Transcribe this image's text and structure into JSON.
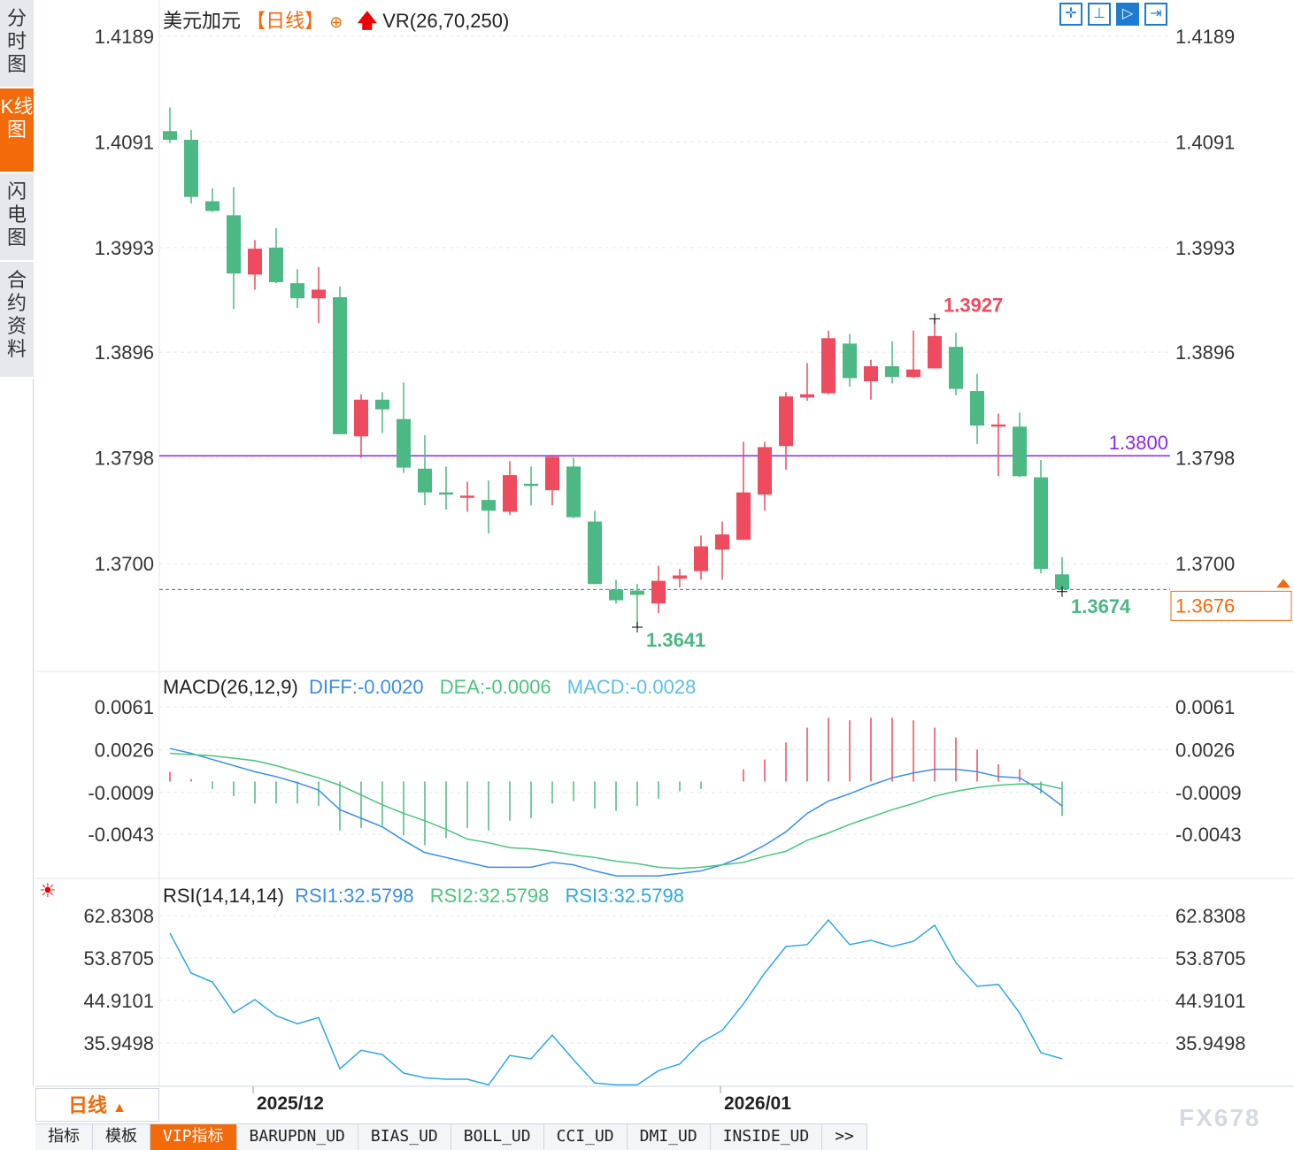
{
  "sidebar": {
    "tabs": [
      {
        "label": "分时图",
        "active": false
      },
      {
        "label": "K线图",
        "active": true
      },
      {
        "label": "闪电图",
        "active": false
      },
      {
        "label": "合约资料",
        "active": false
      }
    ]
  },
  "header": {
    "symbol": "美元加元",
    "period": "【日线】",
    "indicator": "VR(26,70,250)"
  },
  "toolbar": {
    "icons": [
      "crosshair-icon",
      "zoom-range-icon",
      "play-range-icon",
      "move-right-icon"
    ]
  },
  "colors": {
    "up": "#ee4b5e",
    "down": "#4cb884",
    "diff": "#3a8ee6",
    "dea": "#4cc47e",
    "rsi": "#2fa8e0",
    "accent": "#f26a0a",
    "ref_line": "#8b2be2",
    "last_line": "#1f7bd0"
  },
  "chart_data": [
    {
      "type": "candlestick",
      "title": "美元加元",
      "yticks": [
        "1.4189",
        "1.4091",
        "1.3993",
        "1.3896",
        "1.3798",
        "1.3700"
      ],
      "ylim": [
        1.362,
        1.4189
      ],
      "date_ticks": [
        {
          "label": "2025/12",
          "index": 4
        },
        {
          "label": "2026/01",
          "index": 26
        }
      ],
      "ohlc": [
        [
          1.4101,
          1.4123,
          1.409,
          1.4093
        ],
        [
          1.4093,
          1.4102,
          1.4034,
          1.404
        ],
        [
          1.4036,
          1.4048,
          1.4026,
          1.4027
        ],
        [
          1.4023,
          1.4049,
          1.3936,
          1.3969
        ],
        [
          1.3968,
          1.4,
          1.3954,
          1.3992
        ],
        [
          1.3993,
          1.4011,
          1.396,
          1.3961
        ],
        [
          1.396,
          1.3973,
          1.3937,
          1.3946
        ],
        [
          1.3946,
          1.3975,
          1.3923,
          1.3954
        ],
        [
          1.3947,
          1.3957,
          1.382,
          1.382
        ],
        [
          1.3818,
          1.3857,
          1.3798,
          1.3852
        ],
        [
          1.3852,
          1.3859,
          1.3821,
          1.3843
        ],
        [
          1.3834,
          1.3868,
          1.3784,
          1.3789
        ],
        [
          1.3788,
          1.3819,
          1.3754,
          1.3766
        ],
        [
          1.3766,
          1.379,
          1.375,
          1.3764
        ],
        [
          1.3761,
          1.3776,
          1.3748,
          1.3763
        ],
        [
          1.3759,
          1.3777,
          1.3728,
          1.3749
        ],
        [
          1.3748,
          1.3795,
          1.3745,
          1.3782
        ],
        [
          1.3774,
          1.379,
          1.3754,
          1.3772
        ],
        [
          1.3768,
          1.3801,
          1.3754,
          1.3799
        ],
        [
          1.379,
          1.3798,
          1.3742,
          1.3743
        ],
        [
          1.3739,
          1.3749,
          1.3681,
          1.3681
        ],
        [
          1.3676,
          1.3685,
          1.3663,
          1.3666
        ],
        [
          1.3675,
          1.3681,
          1.3641,
          1.3671
        ],
        [
          1.3663,
          1.3698,
          1.3654,
          1.3684
        ],
        [
          1.3686,
          1.3695,
          1.3678,
          1.3689
        ],
        [
          1.3693,
          1.3726,
          1.3685,
          1.3716
        ],
        [
          1.3713,
          1.3739,
          1.3685,
          1.3727
        ],
        [
          1.3722,
          1.3813,
          1.3722,
          1.3766
        ],
        [
          1.3764,
          1.3813,
          1.3749,
          1.3808
        ],
        [
          1.3809,
          1.3859,
          1.3787,
          1.3855
        ],
        [
          1.3854,
          1.3886,
          1.3851,
          1.3857
        ],
        [
          1.3858,
          1.3916,
          1.3857,
          1.3909
        ],
        [
          1.3904,
          1.3913,
          1.3864,
          1.3872
        ],
        [
          1.3869,
          1.3889,
          1.3852,
          1.3883
        ],
        [
          1.3883,
          1.3906,
          1.3867,
          1.3873
        ],
        [
          1.3873,
          1.3916,
          1.3872,
          1.388
        ],
        [
          1.3881,
          1.3927,
          1.3881,
          1.3911
        ],
        [
          1.3901,
          1.3914,
          1.3856,
          1.3862
        ],
        [
          1.386,
          1.3876,
          1.3811,
          1.3828
        ],
        [
          1.3827,
          1.3839,
          1.3781,
          1.3829
        ],
        [
          1.3827,
          1.384,
          1.378,
          1.3781
        ],
        [
          1.378,
          1.3796,
          1.3691,
          1.3695
        ],
        [
          1.369,
          1.3706,
          1.3674,
          1.3676
        ]
      ],
      "annotations": {
        "high": "1.3927",
        "high_index": 36,
        "low": "1.3641",
        "low_index": 22,
        "last_low": "1.3674",
        "last_low_index": 42
      },
      "ref_line": {
        "value": 1.38,
        "label": "1.3800"
      },
      "last_price": {
        "value": 1.3676,
        "label": "1.3676"
      }
    },
    {
      "type": "line",
      "title": "MACD(26,12,9)",
      "legend": [
        {
          "label": "DIFF:-0.0020",
          "color": "#3a8ee6"
        },
        {
          "label": "DEA:-0.0006",
          "color": "#4cc47e"
        },
        {
          "label": "MACD:-0.0028",
          "color": "#4cc47e"
        }
      ],
      "yticks": [
        "0.0061",
        "0.0026",
        "-0.0009",
        "-0.0043"
      ],
      "ylim": [
        -0.0078,
        0.0064
      ],
      "series": [
        {
          "name": "DIFF",
          "values": [
            0.0027,
            0.0023,
            0.0018,
            0.0013,
            0.0008,
            0.0004,
            -0.0001,
            -0.0007,
            -0.0023,
            -0.003,
            -0.0037,
            -0.0048,
            -0.0058,
            -0.0062,
            -0.0066,
            -0.007,
            -0.007,
            -0.007,
            -0.0066,
            -0.0068,
            -0.0073,
            -0.0077,
            -0.0077,
            -0.0077,
            -0.0075,
            -0.0073,
            -0.0068,
            -0.0061,
            -0.0052,
            -0.0041,
            -0.0026,
            -0.0016,
            -0.001,
            -0.0003,
            0.0003,
            0.0007,
            0.001,
            0.001,
            0.0008,
            0.0004,
            0.0003,
            -0.0007,
            -0.002
          ]
        },
        {
          "name": "DEA",
          "values": [
            0.0023,
            0.0022,
            0.0021,
            0.0019,
            0.0017,
            0.0013,
            0.0008,
            0.0003,
            -0.0003,
            -0.0011,
            -0.0019,
            -0.0026,
            -0.0032,
            -0.0039,
            -0.0047,
            -0.005,
            -0.0054,
            -0.0055,
            -0.0057,
            -0.006,
            -0.0062,
            -0.0065,
            -0.0067,
            -0.007,
            -0.0071,
            -0.007,
            -0.0068,
            -0.0066,
            -0.0061,
            -0.0057,
            -0.0048,
            -0.0042,
            -0.0035,
            -0.0029,
            -0.0023,
            -0.0018,
            -0.0012,
            -0.0008,
            -0.0005,
            -0.0003,
            -0.0002,
            -0.0002,
            -0.0006
          ]
        },
        {
          "name": "MACD",
          "values": [
            0.0008,
            0.0002,
            -0.0006,
            -0.0012,
            -0.0018,
            -0.0018,
            -0.0018,
            -0.002,
            -0.004,
            -0.0038,
            -0.0036,
            -0.0044,
            -0.0052,
            -0.0046,
            -0.0038,
            -0.004,
            -0.0032,
            -0.003,
            -0.0018,
            -0.0016,
            -0.0022,
            -0.0024,
            -0.002,
            -0.0014,
            -0.0008,
            -0.0006,
            0.0,
            0.001,
            0.0018,
            0.0032,
            0.0044,
            0.0052,
            0.005,
            0.0052,
            0.0052,
            0.005,
            0.0044,
            0.0036,
            0.0026,
            0.0014,
            0.001,
            -0.001,
            -0.0028
          ]
        }
      ]
    },
    {
      "type": "line",
      "title": "RSI(14,14,14)",
      "legend": [
        {
          "label": "RSI1:32.5798",
          "color": "#3a8ee6"
        },
        {
          "label": "RSI2:32.5798",
          "color": "#4cc47e"
        },
        {
          "label": "RSI3:32.5798",
          "color": "#2fa8e0"
        }
      ],
      "yticks": [
        "62.8308",
        "53.8705",
        "44.9101",
        "35.9498"
      ],
      "ylim": [
        26.1,
        66.6
      ],
      "series": [
        {
          "name": "RSI",
          "values": [
            59.1,
            50.7,
            48.8,
            42.3,
            45.1,
            41.7,
            40.0,
            41.3,
            30.5,
            34.4,
            33.5,
            29.6,
            28.6,
            28.3,
            28.3,
            27.1,
            33.3,
            32.6,
            37.6,
            32.4,
            27.5,
            27.1,
            27.1,
            30.1,
            31.5,
            36.1,
            38.6,
            44.2,
            50.7,
            56.3,
            56.7,
            61.9,
            56.7,
            57.6,
            56.3,
            57.4,
            60.8,
            52.9,
            47.9,
            48.3,
            42.3,
            33.9,
            32.6
          ]
        }
      ]
    }
  ],
  "footer": {
    "period_label": "日线",
    "tabs": [
      {
        "label": "指标",
        "active": false
      },
      {
        "label": "模板",
        "active": false
      },
      {
        "label": "VIP指标",
        "active": true
      },
      {
        "label": "BARUPDN_UD"
      },
      {
        "label": "BIAS_UD"
      },
      {
        "label": "BOLL_UD"
      },
      {
        "label": "CCI_UD"
      },
      {
        "label": "DMI_UD"
      },
      {
        "label": "INSIDE_UD"
      },
      {
        "label": ">>"
      }
    ],
    "watermark": "FX678"
  }
}
